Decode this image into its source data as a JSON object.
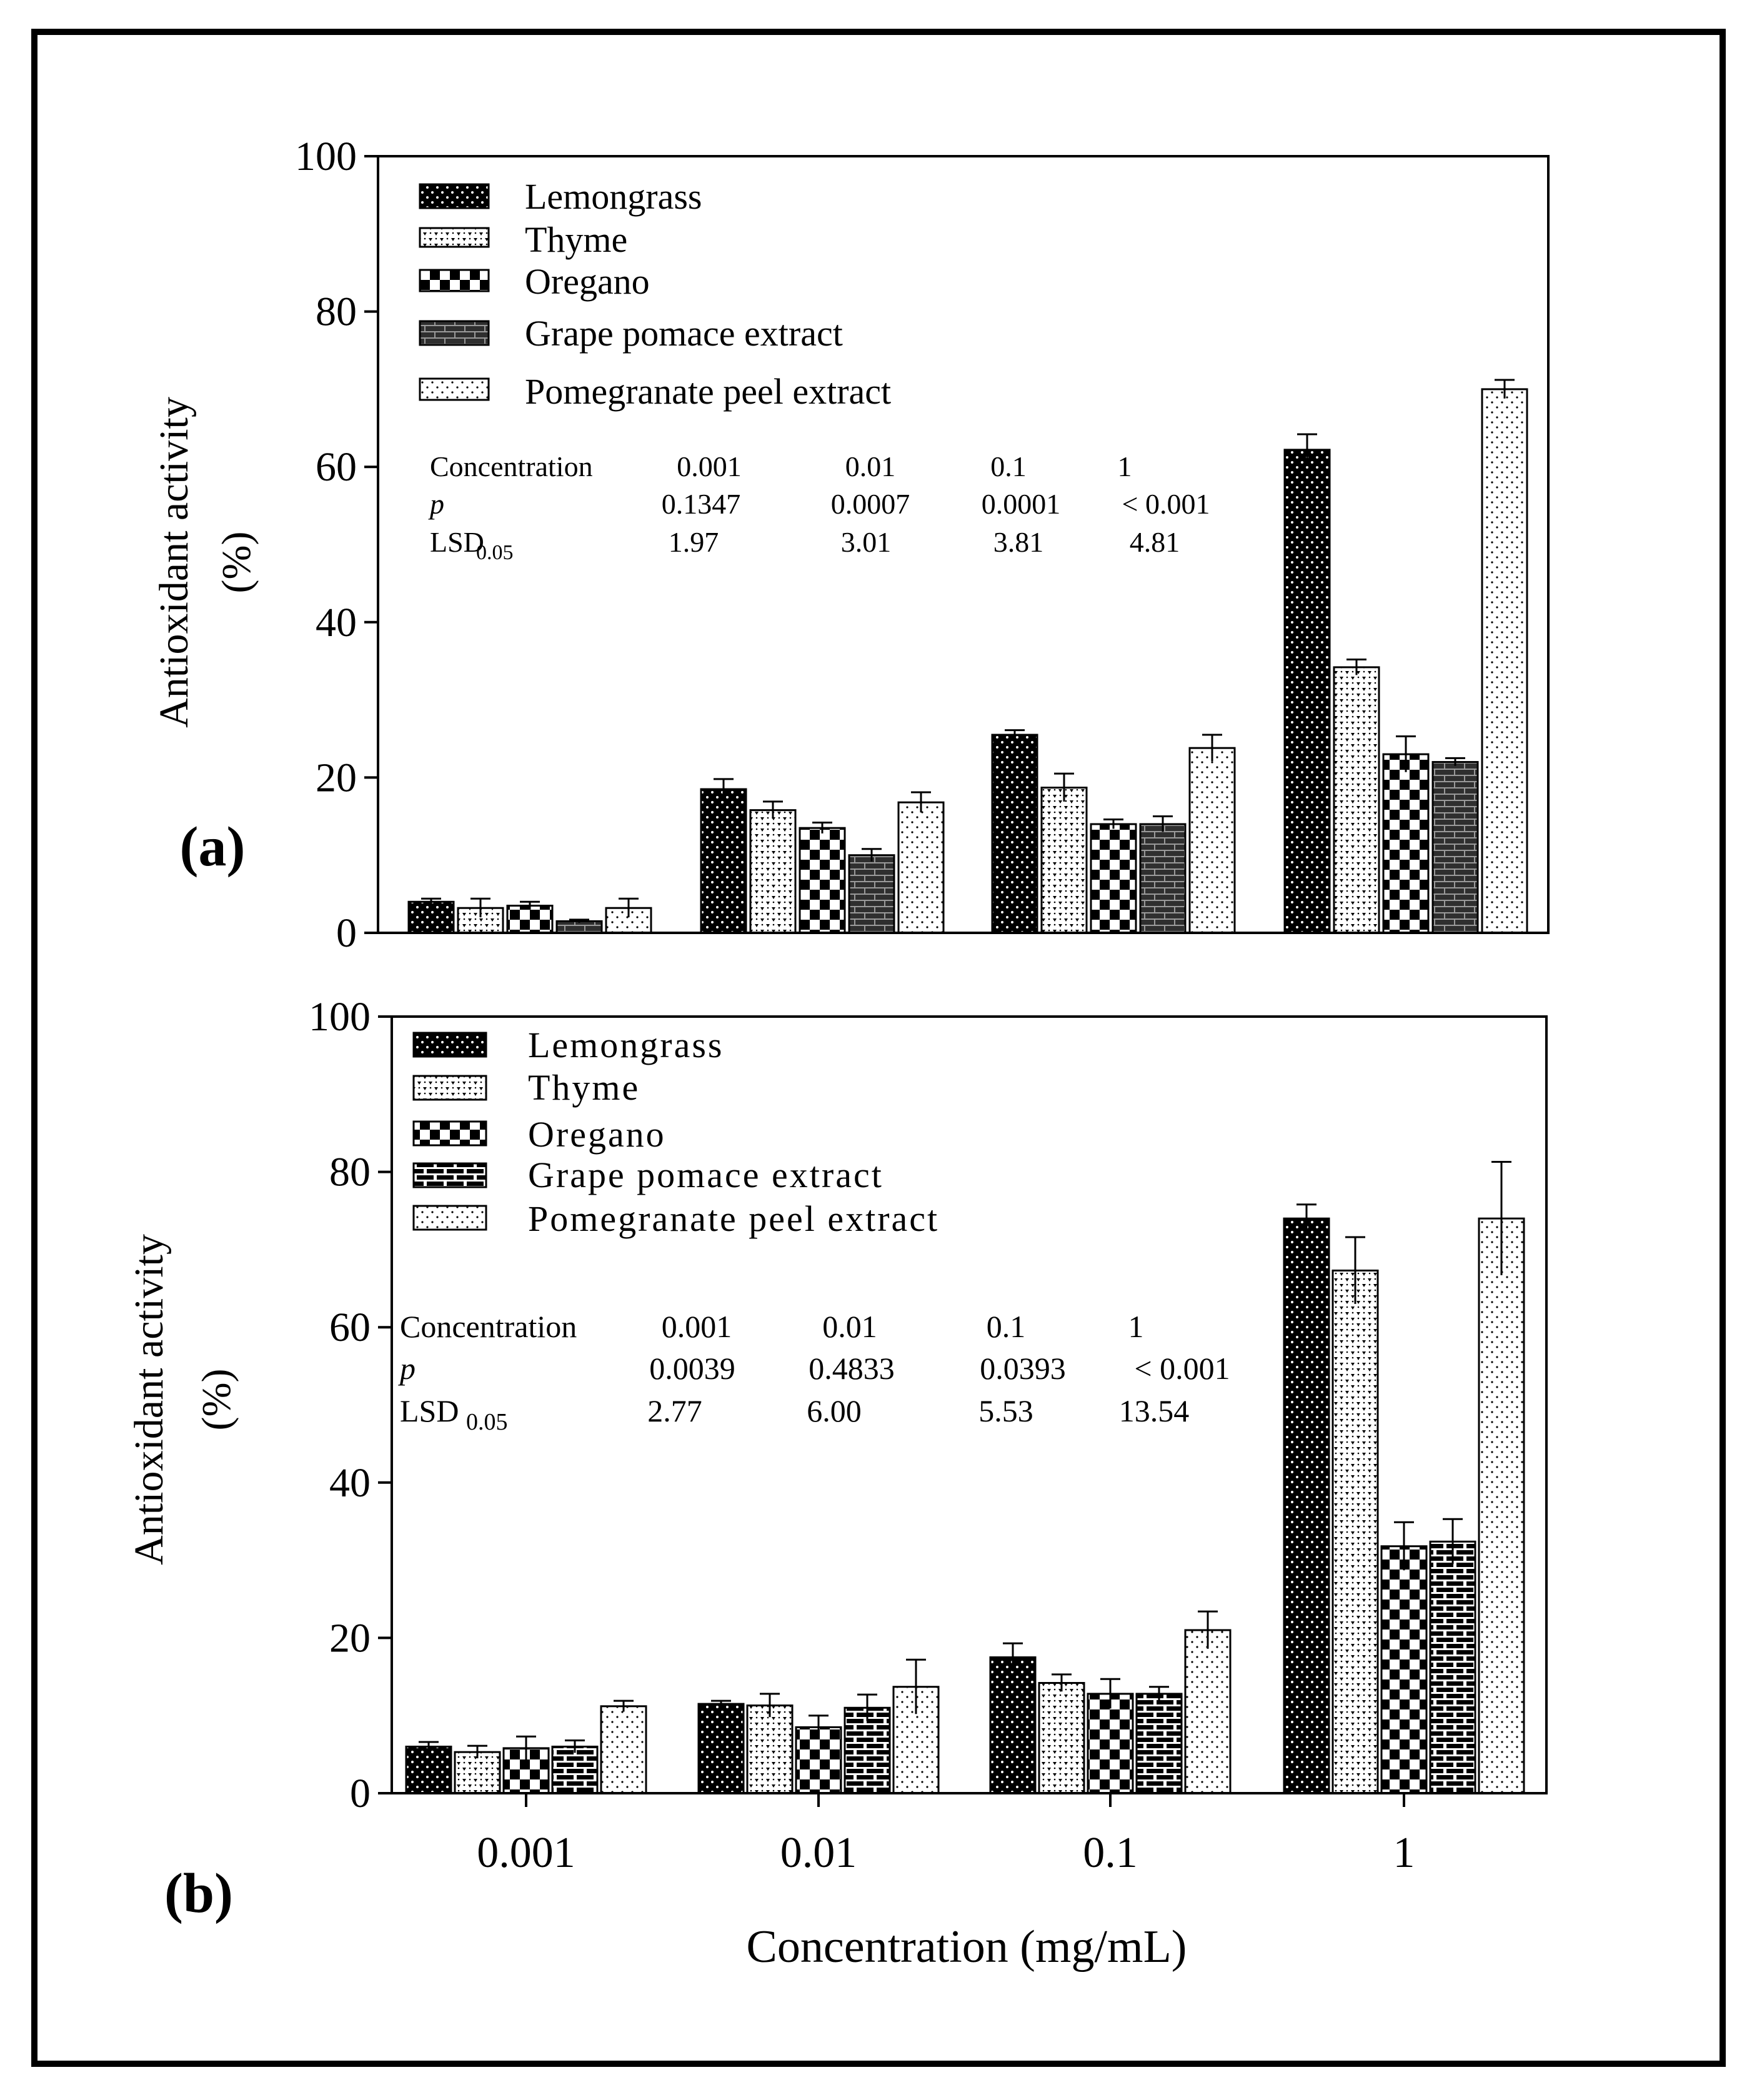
{
  "figure": {
    "xlabel": "Concentration (mg/mL)",
    "ylabel_line1": "Antioxidant activity",
    "ylabel_line2": "(%)"
  },
  "series_names": [
    "Lemongrass",
    "Thyme",
    "Oregano",
    "Grape pomace extract",
    "Pomegranate peel extract"
  ],
  "chart_data": [
    {
      "type": "bar",
      "panel_label": "(a)",
      "categories": [
        "0.001",
        "0.01",
        "0.1",
        "1"
      ],
      "ylim": [
        0,
        100
      ],
      "yticks": [
        "0",
        "20",
        "40",
        "60",
        "80",
        "100"
      ],
      "xlabel": "Concentration (mg/mL)",
      "ylabel": "Antioxidant activity (%)",
      "legend_position": "top-left",
      "series": [
        {
          "name": "Lemongrass",
          "values": [
            4.0,
            18.5,
            25.5,
            62.2
          ],
          "errors": [
            0.4,
            1.3,
            0.6,
            2.0
          ]
        },
        {
          "name": "Thyme",
          "values": [
            3.2,
            15.8,
            18.7,
            34.2
          ],
          "errors": [
            1.2,
            1.1,
            1.8,
            1.0
          ]
        },
        {
          "name": "Oregano",
          "values": [
            3.5,
            13.5,
            14.0,
            23.0
          ],
          "errors": [
            0.5,
            0.7,
            0.6,
            2.3
          ]
        },
        {
          "name": "Grape pomace extract",
          "values": [
            1.5,
            10.0,
            14.0,
            22.0
          ],
          "errors": [
            0.2,
            0.8,
            1.0,
            0.5
          ]
        },
        {
          "name": "Pomegranate peel extract",
          "values": [
            3.2,
            16.8,
            23.8,
            70.0
          ],
          "errors": [
            1.2,
            1.3,
            1.7,
            1.2
          ]
        }
      ],
      "stats_table": {
        "header": [
          "Concentration",
          "0.001",
          "0.01",
          "0.1",
          "1"
        ],
        "p_row_label": "p",
        "p_values": [
          "0.1347",
          "0.0007",
          "0.0001",
          "< 0.001"
        ],
        "lsd_row_label": "LSD",
        "lsd_subscript": "0.05",
        "lsd_values": [
          "1.97",
          "3.01",
          "3.81",
          "4.81"
        ]
      }
    },
    {
      "type": "bar",
      "panel_label": "(b)",
      "categories": [
        "0.001",
        "0.01",
        "0.1",
        "1"
      ],
      "ylim": [
        0,
        100
      ],
      "yticks": [
        "0",
        "20",
        "40",
        "60",
        "80",
        "100"
      ],
      "xlabel": "Concentration (mg/mL)",
      "ylabel": "Antioxidant activity (%)",
      "legend_position": "top-left",
      "series": [
        {
          "name": "Lemongrass",
          "values": [
            6.0,
            11.5,
            17.5,
            74.0
          ],
          "errors": [
            0.6,
            0.4,
            1.8,
            1.8
          ]
        },
        {
          "name": "Thyme",
          "values": [
            5.3,
            11.3,
            14.2,
            67.3
          ],
          "errors": [
            0.8,
            1.5,
            1.1,
            4.3
          ]
        },
        {
          "name": "Oregano",
          "values": [
            5.8,
            8.5,
            12.8,
            31.8
          ],
          "errors": [
            1.5,
            1.5,
            1.9,
            3.1
          ]
        },
        {
          "name": "Grape pomace extract",
          "values": [
            6.0,
            11.0,
            12.8,
            32.4
          ],
          "errors": [
            0.8,
            1.7,
            0.9,
            2.9
          ]
        },
        {
          "name": "Pomegranate peel extract",
          "values": [
            11.2,
            13.7,
            21.0,
            74.0
          ],
          "errors": [
            0.7,
            3.5,
            2.4,
            7.3
          ]
        }
      ],
      "stats_table": {
        "header": [
          "Concentration",
          "0.001",
          "0.01",
          "0.1",
          "1"
        ],
        "p_row_label": "p",
        "p_values": [
          "0.0039",
          "0.4833",
          "0.0393",
          "< 0.001"
        ],
        "lsd_row_label": "LSD",
        "lsd_subscript": "0.05",
        "lsd_values": [
          "2.77",
          "6.00",
          "5.53",
          "13.54"
        ]
      }
    }
  ]
}
